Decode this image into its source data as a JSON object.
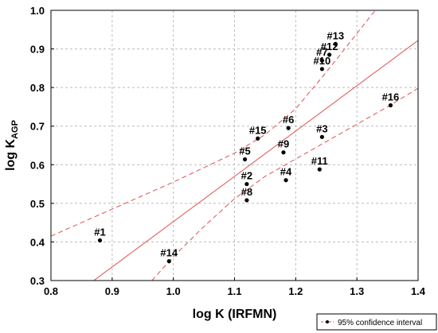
{
  "chart_data": {
    "type": "scatter",
    "xlabel": "log K (IRFMN)",
    "ylabel": "log K",
    "ylabel_subscript": "AGP",
    "xlim": [
      0.8,
      1.4
    ],
    "ylim": [
      0.3,
      1.0
    ],
    "x_ticks": [
      0.8,
      0.9,
      1.0,
      1.1,
      1.2,
      1.3,
      1.4
    ],
    "y_ticks": [
      0.3,
      0.4,
      0.5,
      0.6,
      0.7,
      0.8,
      0.9,
      1.0
    ],
    "x_tick_labels": [
      "0.8",
      "0.9",
      "1.0",
      "1.1",
      "1.2",
      "1.3",
      "1.4"
    ],
    "y_tick_labels": [
      "0.3",
      "0.4",
      "0.5",
      "0.6",
      "0.7",
      "0.8",
      "0.9",
      "1.0"
    ],
    "grid": true,
    "points": [
      {
        "label": "#1",
        "x": 0.88,
        "y": 0.404
      },
      {
        "label": "#2",
        "x": 1.12,
        "y": 0.55
      },
      {
        "label": "#3",
        "x": 1.243,
        "y": 0.672
      },
      {
        "label": "#4",
        "x": 1.184,
        "y": 0.56
      },
      {
        "label": "#5",
        "x": 1.117,
        "y": 0.614
      },
      {
        "label": "#6",
        "x": 1.188,
        "y": 0.695
      },
      {
        "label": "#7",
        "x": 1.243,
        "y": 0.87
      },
      {
        "label": "#8",
        "x": 1.12,
        "y": 0.508
      },
      {
        "label": "#9",
        "x": 1.18,
        "y": 0.632
      },
      {
        "label": "#10",
        "x": 1.243,
        "y": 0.848
      },
      {
        "label": "#11",
        "x": 1.239,
        "y": 0.588
      },
      {
        "label": "#12",
        "x": 1.255,
        "y": 0.885
      },
      {
        "label": "#13",
        "x": 1.265,
        "y": 0.913
      },
      {
        "label": "#14",
        "x": 0.993,
        "y": 0.35
      },
      {
        "label": "#15",
        "x": 1.138,
        "y": 0.668
      },
      {
        "label": "#16",
        "x": 1.355,
        "y": 0.754
      }
    ],
    "regression_line": {
      "x": [
        0.87,
        1.4
      ],
      "y": [
        0.3,
        0.922
      ]
    },
    "ci_upper": [
      [
        0.8,
        0.415
      ],
      [
        0.9,
        0.485
      ],
      [
        1.0,
        0.555
      ],
      [
        1.1,
        0.63
      ],
      [
        1.15,
        0.678
      ],
      [
        1.2,
        0.745
      ],
      [
        1.25,
        0.84
      ],
      [
        1.3,
        0.94
      ],
      [
        1.33,
        1.0
      ]
    ],
    "ci_lower": [
      [
        0.965,
        0.3
      ],
      [
        1.0,
        0.362
      ],
      [
        1.05,
        0.44
      ],
      [
        1.1,
        0.512
      ],
      [
        1.15,
        0.57
      ],
      [
        1.2,
        0.615
      ],
      [
        1.25,
        0.66
      ],
      [
        1.3,
        0.705
      ],
      [
        1.35,
        0.75
      ],
      [
        1.4,
        0.798
      ]
    ],
    "colors": {
      "line": "#e05050",
      "points": "#000000",
      "grid": "#bbbbbb"
    },
    "legend": {
      "position": "bottom-right",
      "entry": "95% confidence interval"
    }
  }
}
